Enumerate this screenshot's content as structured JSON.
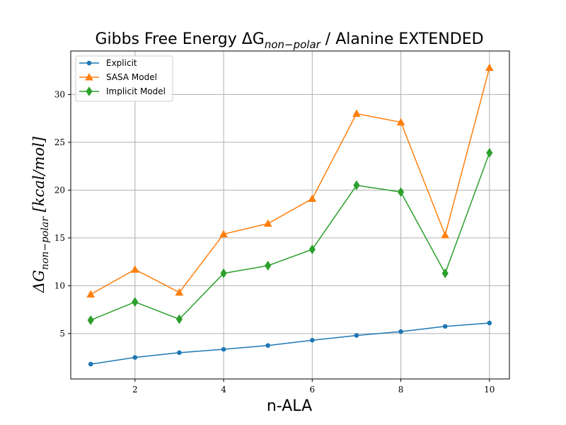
{
  "chart_data": {
    "type": "line",
    "title_prefix": "Gibbs Free Energy ΔG",
    "title_sub": "non−polar",
    "title_suffix": " / Alanine EXTENDED",
    "xlabel": "n-ALA",
    "ylabel_prefix": "ΔG",
    "ylabel_sub": "non−polar",
    "ylabel_suffix": " [kcal/mol]",
    "x": [
      1,
      2,
      3,
      4,
      5,
      6,
      7,
      8,
      9,
      10
    ],
    "xlim": [
      0.55,
      10.45
    ],
    "ylim": [
      0.25,
      34.55
    ],
    "xticks": [
      2,
      4,
      6,
      8,
      10
    ],
    "yticks": [
      5,
      10,
      15,
      20,
      25,
      30
    ],
    "grid": true,
    "legend_position": "top-left",
    "series": [
      {
        "name": "Explicit",
        "color": "#1f77b4",
        "marker": "circle",
        "values": [
          1.8,
          2.5,
          3.0,
          3.35,
          3.75,
          4.3,
          4.8,
          5.2,
          5.75,
          6.1
        ]
      },
      {
        "name": "SASA Model",
        "color": "#ff7f0e",
        "marker": "triangle",
        "values": [
          9.1,
          11.7,
          9.3,
          15.4,
          16.5,
          19.1,
          28.0,
          27.1,
          15.3,
          32.8
        ]
      },
      {
        "name": "Implicit Model",
        "color": "#2ca02c",
        "marker": "diamond",
        "values": [
          6.4,
          8.3,
          6.5,
          11.3,
          12.1,
          13.8,
          20.5,
          19.8,
          11.3,
          23.9
        ]
      }
    ]
  }
}
